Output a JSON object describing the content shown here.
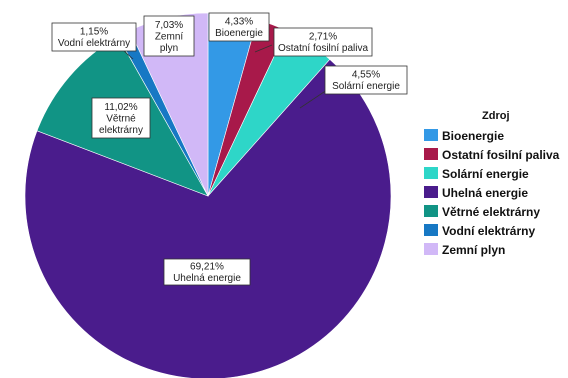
{
  "chart_data": {
    "type": "pie",
    "legend_title": "Zdroj",
    "legend_position": "right",
    "slices": [
      {
        "name": "Bioenergie",
        "value": 4.33,
        "label_value": "4,33%",
        "color": "#3399e6"
      },
      {
        "name": "Ostatní fosilní paliva",
        "value": 2.71,
        "label_value": "2,71%",
        "color": "#a8194a"
      },
      {
        "name": "Solární energie",
        "value": 4.55,
        "label_value": "4,55%",
        "color": "#2ed6c8"
      },
      {
        "name": "Uhelná energie",
        "value": 69.21,
        "label_value": "69,21%",
        "color": "#4a1c8c"
      },
      {
        "name": "Větrné elektrárny",
        "value": 11.02,
        "label_value": "11,02%",
        "color": "#119485"
      },
      {
        "name": "Vodní elektrárny",
        "value": 1.15,
        "label_value": "1,15%",
        "color": "#1778c4"
      },
      {
        "name": "Zemní plyn",
        "value": 7.03,
        "label_value": "7,03%",
        "color": "#d1b8f7"
      }
    ],
    "slice_labels": [
      {
        "lines": [
          "4,33%",
          "Bioenergie"
        ]
      },
      {
        "lines": [
          "2,71%",
          "Ostatní fosilní paliva"
        ]
      },
      {
        "lines": [
          "4,55%",
          "Solární energie"
        ]
      },
      {
        "lines": [
          "69,21%",
          "Uhelná energie"
        ]
      },
      {
        "lines": [
          "11,02%",
          "Větrné",
          "elektrárny"
        ]
      },
      {
        "lines": [
          "1,15%",
          "Vodní elektrárny"
        ]
      },
      {
        "lines": [
          "7,03%",
          "Zemní",
          "plyn"
        ]
      }
    ]
  }
}
